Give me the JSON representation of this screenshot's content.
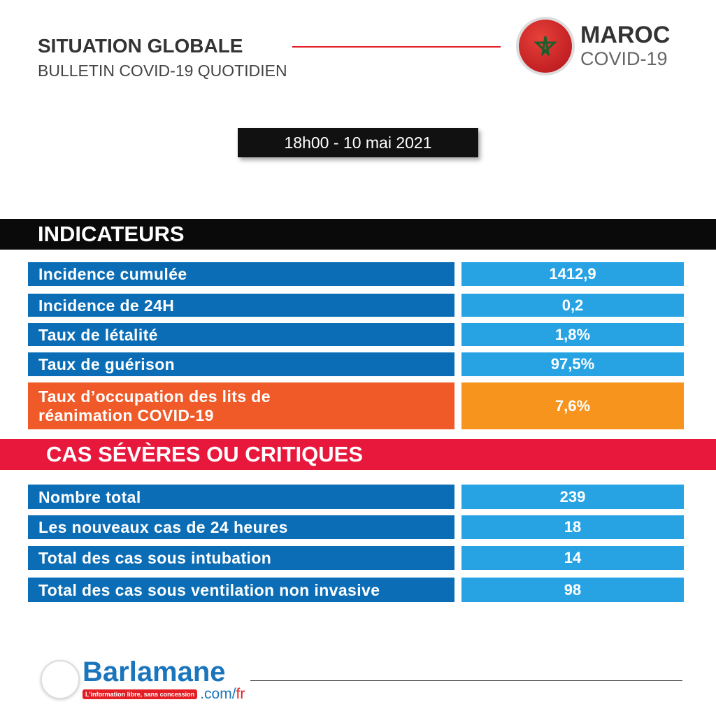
{
  "header": {
    "title": "SITUATION GLOBALE",
    "subtitle": "BULLETIN COVID-19 QUOTIDIEN",
    "country": "MAROC",
    "covid": "COVID-19"
  },
  "date": "18h00  - 10 mai 2021",
  "indicateurs": {
    "title": "INDICATEURS",
    "rows": [
      {
        "label": "Incidence cumulée",
        "value": "1412,9"
      },
      {
        "label": "Incidence de 24H",
        "value": "0,2"
      },
      {
        "label": "Taux de létalité",
        "value": "1,8%"
      },
      {
        "label": "Taux de guérison",
        "value": "97,5%"
      },
      {
        "label": "Taux d’occupation des lits de réanimation COVID-19",
        "value": "7,6%"
      }
    ]
  },
  "cas": {
    "title": "CAS  SÉVÈRES OU CRITIQUES",
    "rows": [
      {
        "label": "Nombre total",
        "value": "239"
      },
      {
        "label": "Les nouveaux cas de 24 heures",
        "value": "18"
      },
      {
        "label": "Total des cas sous intubation",
        "value": "14"
      },
      {
        "label": "Total des cas sous ventilation non invasive",
        "value": "98"
      }
    ]
  },
  "footer": {
    "brand": "Barlamane",
    "tagline": "L'information libre, sans concession",
    "domain": ".com/",
    "domain_suffix": "fr"
  },
  "colors": {
    "blue": "#0b6db5",
    "light_blue": "#27a3e4",
    "orange": "#f05a28",
    "amber": "#f7941d",
    "red": "#e8173c"
  }
}
